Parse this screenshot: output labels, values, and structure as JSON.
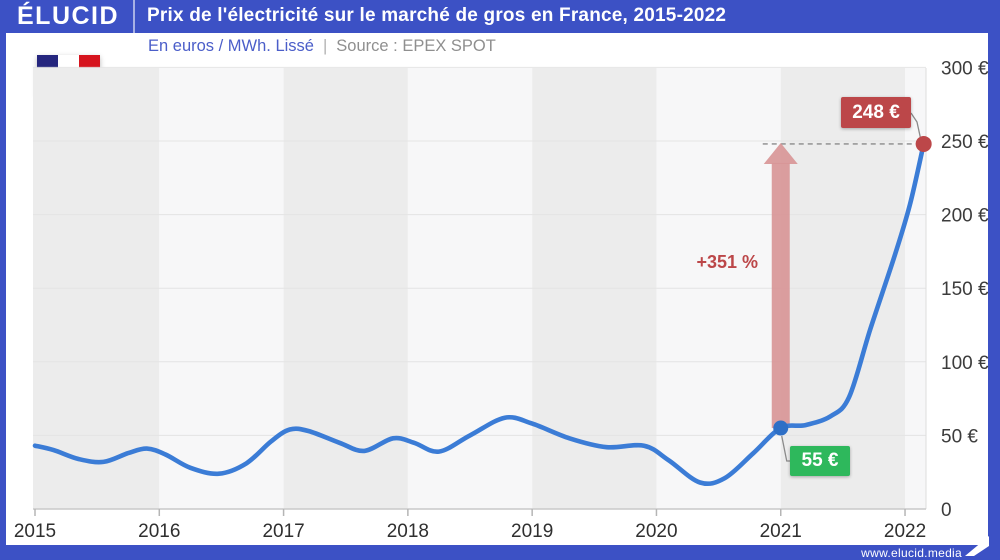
{
  "header": {
    "logo_text": "ÉLUCID",
    "title": "Prix de l'électricité sur le marché de gros en France, 2015-2022"
  },
  "subheader": {
    "unit_label": "En euros / MWh. Lissé",
    "separator": "|",
    "source_label": "Source : EPEX SPOT"
  },
  "footer": {
    "website": "www.elucid.media"
  },
  "colors": {
    "frame_blue": "#3c51c5",
    "line_blue": "#3b7cd6",
    "dot_blue": "#2e6fc6",
    "accent_red": "#bc4749",
    "arrow_pink": "#d89697",
    "badge_green": "#2eb85c",
    "stripe_dark": "#ececec",
    "stripe_light": "#f7f7f8",
    "gridline": "#e4e4e4",
    "axis_line": "#c9c9c9",
    "tick_label": "#3c3c3c",
    "flag_blue": "#25267e",
    "flag_red": "#d6141e"
  },
  "chart_data": {
    "type": "line",
    "title": "Prix de l'électricité sur le marché de gros en France, 2015-2022",
    "ylabel": "euros / MWh (lissé)",
    "source": "EPEX SPOT",
    "xlim": [
      2015,
      2022.2
    ],
    "ylim": [
      0,
      310
    ],
    "grid": "horizontal",
    "legend": "none",
    "x_ticks": [
      2015,
      2016,
      2017,
      2018,
      2019,
      2020,
      2021,
      2022
    ],
    "y_ticks": [
      {
        "value": 300,
        "label": "300 €"
      },
      {
        "value": 250,
        "label": "250 €"
      },
      {
        "value": 200,
        "label": "200 €"
      },
      {
        "value": 150,
        "label": "150 €"
      },
      {
        "value": 100,
        "label": "100 €"
      },
      {
        "value": 50,
        "label": "50 €"
      },
      {
        "value": 0,
        "label": "0"
      }
    ],
    "series": [
      {
        "name": "Prix de gros de l'électricité (lissé)",
        "points": [
          [
            2015.0,
            43
          ],
          [
            2015.15,
            40
          ],
          [
            2015.35,
            34
          ],
          [
            2015.55,
            32
          ],
          [
            2015.75,
            38
          ],
          [
            2015.9,
            41
          ],
          [
            2016.05,
            37
          ],
          [
            2016.25,
            28
          ],
          [
            2016.48,
            24
          ],
          [
            2016.7,
            31
          ],
          [
            2016.9,
            46
          ],
          [
            2017.05,
            54
          ],
          [
            2017.2,
            53
          ],
          [
            2017.45,
            45
          ],
          [
            2017.65,
            39.5
          ],
          [
            2017.88,
            48
          ],
          [
            2018.05,
            45
          ],
          [
            2018.25,
            39
          ],
          [
            2018.5,
            50
          ],
          [
            2018.78,
            62
          ],
          [
            2019.0,
            58
          ],
          [
            2019.3,
            48
          ],
          [
            2019.6,
            42
          ],
          [
            2019.9,
            43
          ],
          [
            2020.1,
            33
          ],
          [
            2020.35,
            18
          ],
          [
            2020.55,
            21
          ],
          [
            2020.78,
            38
          ],
          [
            2021.0,
            55
          ],
          [
            2021.2,
            57
          ],
          [
            2021.4,
            63
          ],
          [
            2021.55,
            76
          ],
          [
            2021.72,
            122
          ],
          [
            2021.92,
            173
          ],
          [
            2022.04,
            207
          ],
          [
            2022.15,
            248
          ]
        ]
      }
    ],
    "highlights": {
      "start": {
        "x": 2021.0,
        "value": 55,
        "label": "55 €"
      },
      "end": {
        "x": 2022.15,
        "value": 248,
        "label": "248 €"
      },
      "change": {
        "label": "+351 %"
      }
    }
  }
}
